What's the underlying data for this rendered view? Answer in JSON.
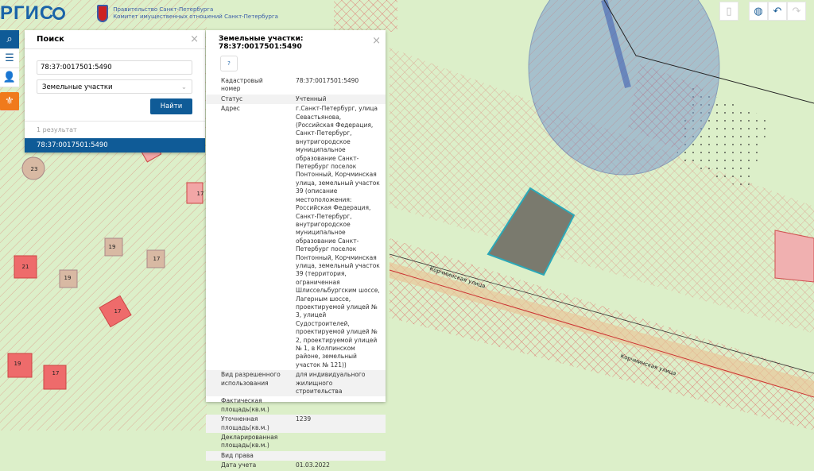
{
  "header": {
    "logo": "РГИС",
    "gov_line1": "Правительство Санкт-Петербурга",
    "gov_line2": "Комитет имущественных отношений Санкт-Петербурга"
  },
  "toolbar": {
    "items": [
      {
        "icon": "search-icon",
        "active": true
      },
      {
        "icon": "menu-icon"
      },
      {
        "icon": "user-list-icon"
      },
      {
        "icon": "spb-emblem-icon"
      }
    ]
  },
  "search": {
    "title": "Поиск",
    "query": "78:37:0017501:5490",
    "layer": "Земельные участки",
    "button": "Найти",
    "count": "1 результат",
    "results": [
      "78:37:0017501:5490"
    ]
  },
  "info": {
    "title": "Земельные участки: 78:37:0017501:5490",
    "help": "?",
    "rows": [
      {
        "k": "Кадастровый номер",
        "v": "78:37:0017501:5490"
      },
      {
        "k": "Статус",
        "v": "Учтенный"
      },
      {
        "k": "Адрес",
        "v": "г.Санкт-Петербург, улица Севастьянова, (Российская Федерация, Санкт-Петербург, внутригородское муниципальное образование Санкт-Петербург поселок Понтонный, Корчминская улица, земельный участок 39 (описание местоположения: Российская Федерация, Санкт-Петербург, внутригородское муниципальное образование Санкт-Петербург поселок Понтонный, Корчминская улица, земельный участок 39 (территория, ограниченная Шлиссельбургским шоссе, Лагерным шоссе, проектируемой улицей № 3, улицей Судостроителей, проектируемой улицей № 2, проектируемой улицей № 1, в Колпинском районе, земельный участок № 121))"
      },
      {
        "k": "Вид разрешенного использования",
        "v": "для индивидуального жилищного строительства"
      },
      {
        "k": "Фактическая площадь(кв.м.)",
        "v": ""
      },
      {
        "k": "Уточненная площадь(кв.м.)",
        "v": "1239"
      },
      {
        "k": "Декларированная площадь(кв.м.)",
        "v": ""
      },
      {
        "k": "Вид права",
        "v": ""
      },
      {
        "k": "Дата учета",
        "v": "01.03.2022"
      }
    ]
  },
  "map": {
    "labels": [
      "23",
      "17",
      "19",
      "17",
      "21",
      "19",
      "17",
      "19",
      "17"
    ],
    "street": "Корчминская улица",
    "selected_color": "#7a7a6e",
    "accent": "#0f5b97"
  },
  "right_tools": [
    {
      "icon": "clipboard-icon"
    },
    {
      "icon": "globe-icon"
    },
    {
      "icon": "undo-icon"
    },
    {
      "icon": "redo-icon"
    }
  ]
}
